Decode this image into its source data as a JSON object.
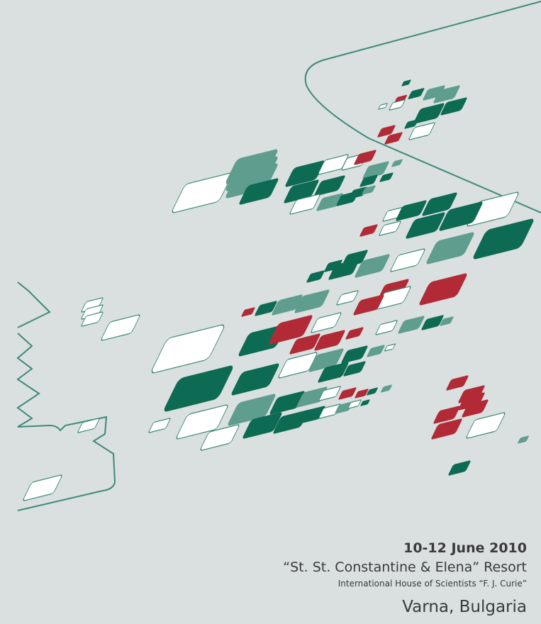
{
  "event": {
    "date": "10-12 June 2010",
    "venue": "“St. St. Constantine & Elena” Resort",
    "institution": "International House of Scientists “F. J. Curie”",
    "city": "Varna, Bulgaria"
  }
}
